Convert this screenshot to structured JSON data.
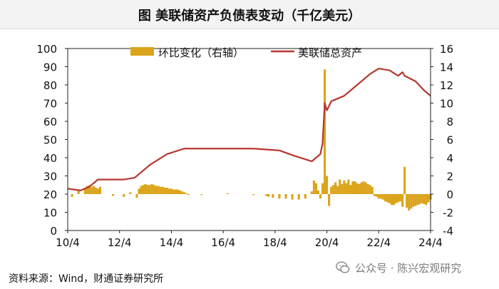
{
  "title": "图  美联储资产负债表变动（千亿美元）",
  "source": "资料来源：Wind，财通证券研究所",
  "watermark": "公众号 · 陈兴宏观研究",
  "chart_data": {
    "type": "bar+line",
    "left_axis": {
      "ticks": [
        0,
        10,
        20,
        30,
        40,
        50,
        60,
        70,
        80,
        90,
        100
      ],
      "ylim": [
        0,
        100
      ]
    },
    "right_axis": {
      "ticks": [
        -4,
        -2,
        0,
        2,
        4,
        6,
        8,
        10,
        12,
        14,
        16
      ],
      "ylim": [
        -4,
        16
      ]
    },
    "x_ticks": [
      "10/4",
      "12/4",
      "14/4",
      "16/4",
      "18/4",
      "20/4",
      "22/4",
      "24/4"
    ],
    "x_range": [
      "2010-04",
      "2024-04"
    ],
    "legend": [
      {
        "name": "环比变化（右轴）",
        "type": "bar",
        "color": "#dba41b"
      },
      {
        "name": "美联储总资产",
        "type": "line",
        "color": "#b5372e"
      }
    ],
    "line_series": {
      "name": "美联储总资产",
      "x": [
        "2010-04",
        "2010-10",
        "2011-02",
        "2011-06",
        "2012-06",
        "2012-11",
        "2013-06",
        "2014-02",
        "2014-10",
        "2015-06",
        "2016-06",
        "2017-06",
        "2018-06",
        "2019-01",
        "2019-09",
        "2020-01",
        "2020-02",
        "2020-03",
        "2020-04",
        "2020-06",
        "2020-12",
        "2021-06",
        "2021-12",
        "2022-04",
        "2022-09",
        "2023-01",
        "2023-03",
        "2023-04",
        "2023-09",
        "2024-01",
        "2024-04"
      ],
      "values": [
        23,
        22,
        24,
        28,
        28,
        29,
        36,
        42,
        45,
        45,
        45,
        45,
        44,
        41,
        38,
        42,
        48,
        70,
        66,
        71,
        74,
        80,
        86,
        89,
        88,
        85,
        87,
        85,
        82,
        77,
        74
      ]
    },
    "bar_series": {
      "name": "环比变化（右轴）",
      "x": [
        "2010-06",
        "2010-09",
        "2010-12",
        "2011-01",
        "2011-02",
        "2011-03",
        "2011-04",
        "2011-05",
        "2011-06",
        "2011-07",
        "2012-01",
        "2012-06",
        "2012-09",
        "2012-12",
        "2013-01",
        "2013-02",
        "2013-03",
        "2013-04",
        "2013-05",
        "2013-06",
        "2013-07",
        "2013-08",
        "2013-09",
        "2013-10",
        "2013-11",
        "2013-12",
        "2014-01",
        "2014-02",
        "2014-03",
        "2014-04",
        "2014-05",
        "2014-06",
        "2014-07",
        "2014-08",
        "2014-09",
        "2014-10",
        "2014-11",
        "2014-12",
        "2015-06",
        "2016-06",
        "2017-06",
        "2017-12",
        "2018-01",
        "2018-03",
        "2018-06",
        "2018-09",
        "2018-12",
        "2019-03",
        "2019-06",
        "2019-09",
        "2019-10",
        "2019-11",
        "2019-12",
        "2020-01",
        "2020-02",
        "2020-03",
        "2020-04",
        "2020-05",
        "2020-06",
        "2020-07",
        "2020-08",
        "2020-09",
        "2020-10",
        "2020-11",
        "2020-12",
        "2021-01",
        "2021-02",
        "2021-03",
        "2021-04",
        "2021-05",
        "2021-06",
        "2021-07",
        "2021-08",
        "2021-09",
        "2021-10",
        "2021-11",
        "2021-12",
        "2022-01",
        "2022-02",
        "2022-03",
        "2022-04",
        "2022-05",
        "2022-06",
        "2022-07",
        "2022-08",
        "2022-09",
        "2022-10",
        "2022-11",
        "2022-12",
        "2023-01",
        "2023-02",
        "2023-03",
        "2023-04",
        "2023-05",
        "2023-06",
        "2023-07",
        "2023-08",
        "2023-09",
        "2023-10",
        "2023-11",
        "2023-12",
        "2024-01",
        "2024-02",
        "2024-03",
        "2024-04"
      ],
      "values": [
        -0.3,
        0.5,
        0.7,
        0.9,
        1.0,
        0.8,
        0.9,
        0.7,
        0.6,
        0.8,
        -0.2,
        -0.3,
        0.2,
        -0.4,
        0.6,
        0.9,
        1.0,
        1.1,
        1.0,
        1.0,
        1.1,
        1.0,
        0.9,
        0.9,
        0.8,
        0.8,
        0.7,
        0.7,
        0.6,
        0.6,
        0.5,
        0.5,
        0.5,
        0.4,
        0.3,
        0.2,
        0.1,
        -0.1,
        -0.1,
        0.1,
        -0.1,
        -0.2,
        -0.3,
        -0.4,
        -0.5,
        -0.5,
        -0.6,
        -0.6,
        -0.5,
        0.3,
        1.5,
        1.2,
        0.4,
        -0.5,
        1.2,
        13.7,
        2.0,
        -1.3,
        0.8,
        1.0,
        1.3,
        0.9,
        1.6,
        1.1,
        1.5,
        1.2,
        1.6,
        1.0,
        1.4,
        1.4,
        1.2,
        1.1,
        1.3,
        1.4,
        1.3,
        1.1,
        1.0,
        0.8,
        -0.2,
        -0.3,
        -0.5,
        -0.5,
        -0.6,
        -0.8,
        -0.9,
        -1.0,
        -1.2,
        -1.2,
        -1.0,
        -0.9,
        -0.8,
        -1.4,
        3.0,
        -1.5,
        -1.8,
        -1.6,
        -1.4,
        -1.3,
        -1.2,
        -1.1,
        -1.0,
        -1.1,
        -1.2,
        -0.9,
        -0.6
      ]
    }
  }
}
